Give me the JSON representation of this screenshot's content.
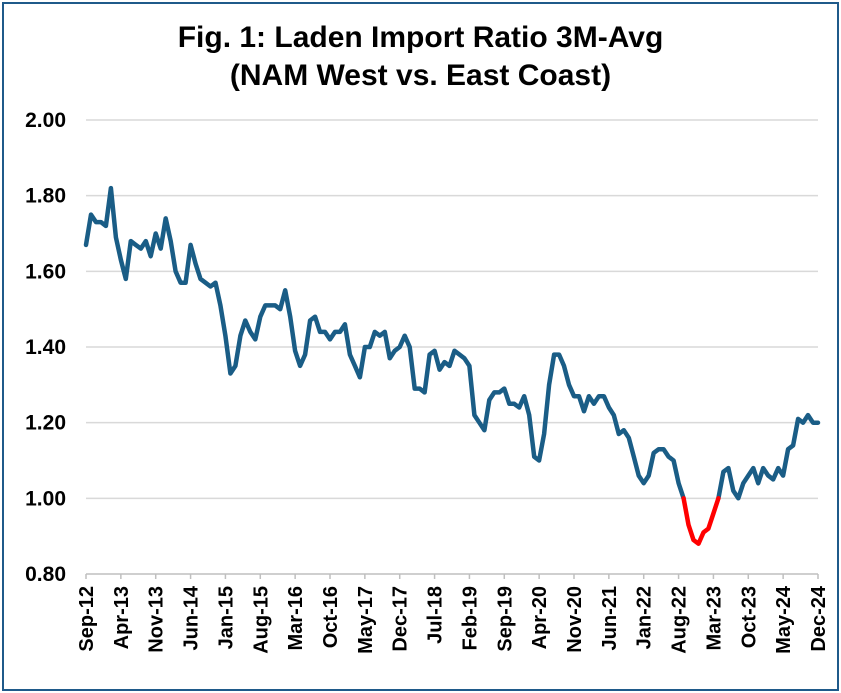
{
  "chart_data": {
    "type": "line",
    "title": "Fig. 1: Laden Import Ratio 3M-Avg",
    "subtitle": "(NAM West vs. East Coast)",
    "xlabel": "",
    "ylabel": "",
    "ylim": [
      0.8,
      2.0
    ],
    "yticks": [
      "0.80",
      "1.00",
      "1.20",
      "1.40",
      "1.60",
      "1.80",
      "2.00"
    ],
    "xticks": [
      "Sep-12",
      "Apr-13",
      "Nov-13",
      "Jun-14",
      "Jan-15",
      "Aug-15",
      "Mar-16",
      "Oct-16",
      "May-17",
      "Dec-17",
      "Jul-18",
      "Feb-19",
      "Sep-19",
      "Apr-20",
      "Nov-20",
      "Jun-21",
      "Jan-22",
      "Aug-22",
      "Mar-23",
      "Oct-23",
      "May-24",
      "Dec-24"
    ],
    "grid": "horizontal",
    "line_color": "#1a5d86",
    "highlight_color": "#ff0000",
    "highlight_range": [
      "2022-09",
      "2023-04"
    ],
    "series": [
      {
        "x": [
          "2012-09",
          "2012-10",
          "2012-11",
          "2012-12",
          "2013-01",
          "2013-02",
          "2013-03",
          "2013-04",
          "2013-05",
          "2013-06",
          "2013-07",
          "2013-08",
          "2013-09",
          "2013-10",
          "2013-11",
          "2013-12",
          "2014-01",
          "2014-02",
          "2014-03",
          "2014-04",
          "2014-05",
          "2014-06",
          "2014-07",
          "2014-08",
          "2014-09",
          "2014-10",
          "2014-11",
          "2014-12",
          "2015-01",
          "2015-02",
          "2015-03",
          "2015-04",
          "2015-05",
          "2015-06",
          "2015-07",
          "2015-08",
          "2015-09",
          "2015-10",
          "2015-11",
          "2015-12",
          "2016-01",
          "2016-02",
          "2016-03",
          "2016-04",
          "2016-05",
          "2016-06",
          "2016-07",
          "2016-08",
          "2016-09",
          "2016-10",
          "2016-11",
          "2016-12",
          "2017-01",
          "2017-02",
          "2017-03",
          "2017-04",
          "2017-05",
          "2017-06",
          "2017-07",
          "2017-08",
          "2017-09",
          "2017-10",
          "2017-11",
          "2017-12",
          "2018-01",
          "2018-02",
          "2018-03",
          "2018-04",
          "2018-05",
          "2018-06",
          "2018-07",
          "2018-08",
          "2018-09",
          "2018-10",
          "2018-11",
          "2018-12",
          "2019-01",
          "2019-02",
          "2019-03",
          "2019-04",
          "2019-05",
          "2019-06",
          "2019-07",
          "2019-08",
          "2019-09",
          "2019-10",
          "2019-11",
          "2019-12",
          "2020-01",
          "2020-02",
          "2020-03",
          "2020-04",
          "2020-05",
          "2020-06",
          "2020-07",
          "2020-08",
          "2020-09",
          "2020-10",
          "2020-11",
          "2020-12",
          "2021-01",
          "2021-02",
          "2021-03",
          "2021-04",
          "2021-05",
          "2021-06",
          "2021-07",
          "2021-08",
          "2021-09",
          "2021-10",
          "2021-11",
          "2021-12",
          "2022-01",
          "2022-02",
          "2022-03",
          "2022-04",
          "2022-05",
          "2022-06",
          "2022-07",
          "2022-08",
          "2022-09",
          "2022-10",
          "2022-11",
          "2022-12",
          "2023-01",
          "2023-02",
          "2023-03",
          "2023-04",
          "2023-05",
          "2023-06",
          "2023-07",
          "2023-08",
          "2023-09",
          "2023-10",
          "2023-11",
          "2023-12",
          "2024-01",
          "2024-02",
          "2024-03",
          "2024-04",
          "2024-05",
          "2024-06",
          "2024-07",
          "2024-08",
          "2024-09",
          "2024-10",
          "2024-11",
          "2024-12"
        ],
        "values": [
          1.67,
          1.75,
          1.73,
          1.73,
          1.72,
          1.82,
          1.69,
          1.63,
          1.58,
          1.68,
          1.67,
          1.66,
          1.68,
          1.64,
          1.7,
          1.66,
          1.74,
          1.68,
          1.6,
          1.57,
          1.57,
          1.67,
          1.62,
          1.58,
          1.57,
          1.56,
          1.57,
          1.51,
          1.43,
          1.33,
          1.35,
          1.43,
          1.47,
          1.44,
          1.42,
          1.48,
          1.51,
          1.51,
          1.51,
          1.5,
          1.55,
          1.48,
          1.39,
          1.35,
          1.38,
          1.47,
          1.48,
          1.44,
          1.44,
          1.42,
          1.44,
          1.44,
          1.46,
          1.38,
          1.35,
          1.32,
          1.4,
          1.4,
          1.44,
          1.43,
          1.44,
          1.37,
          1.39,
          1.4,
          1.43,
          1.4,
          1.29,
          1.29,
          1.28,
          1.38,
          1.39,
          1.34,
          1.36,
          1.35,
          1.39,
          1.38,
          1.37,
          1.35,
          1.22,
          1.2,
          1.18,
          1.26,
          1.28,
          1.28,
          1.29,
          1.25,
          1.25,
          1.24,
          1.27,
          1.22,
          1.11,
          1.1,
          1.17,
          1.3,
          1.38,
          1.38,
          1.35,
          1.3,
          1.27,
          1.27,
          1.23,
          1.27,
          1.25,
          1.27,
          1.27,
          1.24,
          1.22,
          1.17,
          1.18,
          1.16,
          1.11,
          1.06,
          1.04,
          1.06,
          1.12,
          1.13,
          1.13,
          1.11,
          1.1,
          1.04,
          1.0,
          0.93,
          0.89,
          0.88,
          0.91,
          0.92,
          0.96,
          1.0,
          1.07,
          1.08,
          1.02,
          1.0,
          1.04,
          1.06,
          1.08,
          1.04,
          1.08,
          1.06,
          1.05,
          1.08,
          1.06,
          1.13,
          1.14,
          1.21,
          1.2,
          1.22,
          1.2,
          1.2
        ]
      }
    ]
  }
}
